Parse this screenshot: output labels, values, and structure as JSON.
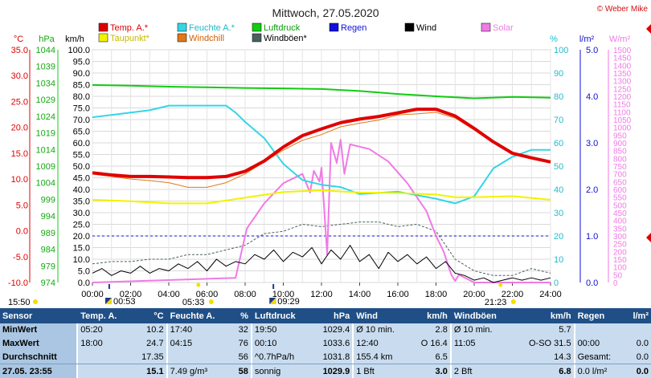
{
  "title": "Mittwoch, 27.05.2020",
  "copyright": "© Weber Mike",
  "legend": [
    {
      "label": "Temp. A.*",
      "color": "#e00000"
    },
    {
      "label": "Feuchte A.*",
      "color": "#33d6e6"
    },
    {
      "label": "Luftdruck",
      "color": "#11cc11"
    },
    {
      "label": "Regen",
      "color": "#1010dd"
    },
    {
      "label": "Wind",
      "color": "#000000"
    },
    {
      "label": "Solar",
      "color": "#f07ae6"
    },
    {
      "label": "Taupunkt*",
      "color": "#f2f200"
    },
    {
      "label": "Windchill",
      "color": "#e07818"
    },
    {
      "label": "Windböen*",
      "color": "#4a6060"
    }
  ],
  "axis_units": {
    "temp": "°C",
    "press": "hPa",
    "wind": "km/h",
    "hum": "%",
    "rain": "l/m²",
    "solar": "W/m²"
  },
  "chart_data": {
    "type": "line",
    "x_ticks": [
      "00:00",
      "02:00",
      "04:00",
      "06:00",
      "08:00",
      "10:00",
      "12:00",
      "14:00",
      "16:00",
      "18:00",
      "20:00",
      "22:00",
      "24:00"
    ],
    "y_axes": {
      "temp": {
        "unit": "°C",
        "ticks": [
          "35.0",
          "30.0",
          "25.0",
          "20.0",
          "15.0",
          "10.0",
          "5.0",
          "0.0",
          "-5.0",
          "-10.0"
        ]
      },
      "press": {
        "unit": "hPa",
        "ticks": [
          "1044",
          "1039",
          "1034",
          "1029",
          "1024",
          "1019",
          "1014",
          "1009",
          "1004",
          "999",
          "994",
          "989",
          "984",
          "979",
          "974"
        ]
      },
      "wind": {
        "unit": "km/h",
        "ticks": [
          "100.0",
          "95.0",
          "90.0",
          "85.0",
          "80.0",
          "75.0",
          "70.0",
          "65.0",
          "60.0",
          "55.0",
          "50.0",
          "45.0",
          "40.0",
          "35.0",
          "30.0",
          "25.0",
          "20.0",
          "15.0",
          "10.0",
          "5.0",
          "0.0"
        ]
      },
      "hum": {
        "unit": "%",
        "ticks": [
          "100",
          "90",
          "80",
          "70",
          "60",
          "50",
          "40",
          "30",
          "20",
          "10",
          "0"
        ]
      },
      "rain": {
        "unit": "l/m²",
        "ticks": [
          "5.0",
          "4.0",
          "3.0",
          "2.0",
          "1.0",
          "0.0"
        ]
      },
      "solar": {
        "unit": "W/m²",
        "ticks": [
          "1500",
          "1450",
          "1400",
          "1350",
          "1300",
          "1250",
          "1200",
          "1150",
          "1100",
          "1050",
          "1000",
          "950",
          "900",
          "850",
          "800",
          "750",
          "700",
          "650",
          "600",
          "550",
          "500",
          "450",
          "400",
          "350",
          "300",
          "250",
          "200",
          "150",
          "100",
          "50",
          "0"
        ]
      }
    },
    "series": [
      {
        "name": "Temp. A.*",
        "axis": "temp",
        "color": "#e00000",
        "width": 4,
        "x": [
          0,
          1,
          2,
          3,
          4,
          5,
          6,
          7,
          8,
          9,
          10,
          11,
          12,
          13,
          14,
          15,
          16,
          17,
          18,
          19,
          20,
          21,
          22,
          23,
          24
        ],
        "y": [
          11.2,
          10.8,
          10.5,
          10.5,
          10.4,
          10.3,
          10.3,
          10.5,
          11.5,
          13.5,
          16.2,
          18.4,
          19.7,
          20.9,
          21.6,
          22.1,
          22.8,
          23.5,
          23.5,
          22.2,
          19.8,
          17.2,
          15.0,
          14.1,
          13.3
        ]
      },
      {
        "name": "Windchill",
        "axis": "temp",
        "color": "#e07818",
        "width": 1,
        "x": [
          0,
          1,
          2,
          3,
          4,
          5,
          6,
          7,
          8,
          9,
          10,
          11,
          12,
          13,
          14,
          15,
          16,
          17,
          18,
          19,
          20,
          21,
          22,
          23,
          24
        ],
        "y": [
          11.0,
          10.5,
          10.0,
          9.7,
          9.3,
          8.4,
          8.4,
          9.3,
          11.0,
          13.3,
          15.6,
          17.5,
          18.6,
          20.1,
          20.8,
          21.4,
          22.4,
          22.6,
          22.9,
          21.8,
          19.5,
          17.0,
          14.8,
          14.0,
          13.2
        ]
      },
      {
        "name": "Taupunkt*",
        "axis": "temp",
        "color": "#f2f200",
        "width": 2,
        "x": [
          0,
          2,
          4,
          6,
          8,
          10,
          12,
          14,
          16,
          18,
          19,
          20,
          22,
          24
        ],
        "y": [
          6.0,
          5.7,
          5.3,
          5.3,
          6.4,
          7.5,
          7.8,
          7.4,
          7.3,
          7.0,
          6.5,
          6.5,
          6.7,
          6.0
        ]
      },
      {
        "name": "Luftdruck",
        "axis": "press",
        "color": "#11cc11",
        "width": 2,
        "x": [
          0,
          2,
          4,
          6,
          8,
          10,
          12,
          14,
          16,
          18,
          20,
          22,
          24
        ],
        "y": [
          1033.4,
          1033.2,
          1032.9,
          1032.7,
          1032.5,
          1032.4,
          1032.2,
          1031.6,
          1030.7,
          1030.0,
          1029.4,
          1029.8,
          1029.6
        ]
      },
      {
        "name": "Feuchte A.*",
        "axis": "hum",
        "color": "#33d6e6",
        "width": 2,
        "x": [
          0,
          1,
          2,
          3,
          4,
          5,
          6,
          7,
          7.5,
          8,
          9,
          10,
          11,
          12,
          13,
          14,
          16,
          18,
          19,
          20,
          21,
          22,
          23,
          24
        ],
        "y": [
          71,
          72,
          73,
          74,
          76,
          76,
          76,
          76,
          73,
          69,
          62,
          51,
          44,
          42,
          41,
          38,
          39,
          36,
          34,
          37,
          49,
          54,
          57,
          57
        ]
      },
      {
        "name": "Solar",
        "axis": "solar",
        "color": "#f07ae6",
        "width": 2,
        "x": [
          0,
          7.5,
          8.0,
          8.1,
          9.0,
          10.0,
          11.0,
          11.4,
          11.6,
          11.9,
          12.0,
          12.3,
          12.5,
          12.8,
          13.0,
          13.2,
          13.5,
          14.5,
          15.5,
          16.5,
          17.5,
          18.0,
          18.4,
          18.8,
          19.0,
          19.2,
          20.0,
          24
        ],
        "y": [
          0,
          30,
          300,
          350,
          510,
          640,
          700,
          580,
          720,
          650,
          740,
          180,
          900,
          770,
          920,
          700,
          890,
          860,
          780,
          640,
          460,
          300,
          200,
          50,
          10,
          50,
          0,
          0
        ]
      },
      {
        "name": "Windböen*",
        "axis": "wind",
        "color": "#4a6060",
        "width": 1,
        "dash": "3,2",
        "x": [
          0,
          1,
          2,
          3,
          4,
          5,
          6,
          7,
          8,
          9,
          10,
          11,
          12,
          13,
          14,
          15,
          16,
          17,
          18,
          19,
          20,
          21,
          22,
          23,
          24
        ],
        "y": [
          8,
          9,
          9,
          10,
          10,
          12,
          12,
          14,
          16,
          21,
          22,
          25,
          24,
          25,
          26,
          26,
          24,
          25,
          22,
          10,
          5,
          3,
          3,
          6,
          4
        ]
      },
      {
        "name": "Wind",
        "axis": "wind",
        "color": "#000000",
        "width": 1,
        "x": [
          0,
          0.5,
          1,
          1.5,
          2,
          2.5,
          3,
          3.5,
          4,
          4.5,
          5,
          5.5,
          6,
          6.5,
          7,
          7.5,
          8,
          8.5,
          9,
          9.5,
          10,
          10.5,
          11,
          11.5,
          12,
          12.5,
          13,
          13.5,
          14,
          14.5,
          15,
          15.5,
          16,
          16.5,
          17,
          17.5,
          18,
          18.5,
          19,
          19.5,
          20,
          20.5,
          21,
          21.5,
          22,
          22.5,
          23,
          23.5,
          24
        ],
        "y": [
          4,
          6,
          3,
          5,
          4,
          7,
          4,
          6,
          5,
          8,
          6,
          9,
          5,
          10,
          7,
          9,
          8,
          12,
          10,
          14,
          9,
          13,
          11,
          15,
          8,
          14,
          10,
          16,
          9,
          12,
          6,
          13,
          9,
          12,
          8,
          11,
          6,
          9,
          4,
          3,
          1,
          2,
          0,
          1,
          2,
          1,
          2,
          1,
          2
        ]
      },
      {
        "name": "Regen",
        "axis": "rain",
        "color": "#1010dd",
        "width": 1,
        "dash": "3,3",
        "x": [
          0,
          24
        ],
        "y": [
          1.0,
          1.0
        ]
      }
    ]
  },
  "sun_markers": [
    {
      "time": "15:50",
      "pos": "below"
    },
    {
      "time": "00:53",
      "pos": "upper"
    },
    {
      "time": "05:33",
      "pos": "below"
    },
    {
      "time": "09:29",
      "pos": "upper"
    },
    {
      "time": "21:23",
      "pos": "below"
    }
  ],
  "stats": {
    "headers": [
      "Sensor",
      "Temp. A.",
      "°C",
      "Feuchte A.",
      "%",
      "Luftdruck",
      "hPa",
      "Wind",
      "km/h",
      "Windböen",
      "km/h",
      "Regen",
      "l/m²"
    ],
    "rows": [
      [
        "MinWert",
        "05:20",
        "10.2",
        "17:40",
        "32",
        "19:50",
        "1029.4",
        "Ø 10 min.",
        "2.8",
        "Ø 10 min.",
        "5.7",
        "",
        ""
      ],
      [
        "MaxWert",
        "18:00",
        "24.7",
        "04:15",
        "76",
        "00:10",
        "1033.6",
        "12:40",
        "O 16.4",
        "11:05",
        "O-SO 31.5",
        "00:00",
        "0.0"
      ],
      [
        "Durchschnitt",
        "",
        "17.35",
        "",
        "56",
        "^0.7hPa/h",
        "1031.8",
        "155.4 km",
        "6.5",
        "",
        "14.3",
        "Gesamt:",
        "0.0"
      ],
      [
        "27.05. 23:55",
        "",
        "15.1",
        "7.49 g/m³",
        "58",
        "sonnig",
        "1029.9",
        "1 Bft",
        "3.0",
        "2 Bft",
        "6.8",
        "0.0 l/m²",
        "0.0"
      ]
    ]
  }
}
